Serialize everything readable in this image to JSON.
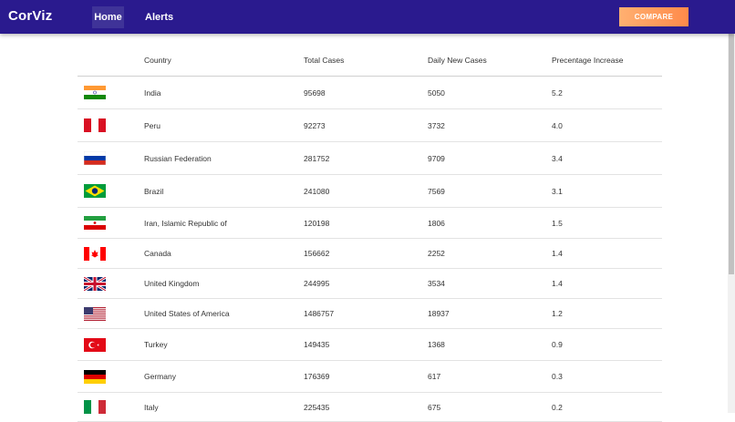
{
  "navbar": {
    "brand": "CorViz",
    "links": [
      "Home",
      "Alerts"
    ],
    "compare_label": "COMPARE"
  },
  "table": {
    "headers": [
      "",
      "Country",
      "Total Cases",
      "Daily New Cases",
      "Precentage Increase"
    ],
    "rows": [
      {
        "flag": "india-flag-icon",
        "country": "India",
        "total": "95698",
        "daily": "5050",
        "pct": "5.2"
      },
      {
        "flag": "peru-flag-icon",
        "country": "Peru",
        "total": "92273",
        "daily": "3732",
        "pct": "4.0"
      },
      {
        "flag": "russia-flag-icon",
        "country": "Russian Federation",
        "total": "281752",
        "daily": "9709",
        "pct": "3.4"
      },
      {
        "flag": "brazil-flag-icon",
        "country": "Brazil",
        "total": "241080",
        "daily": "7569",
        "pct": "3.1"
      },
      {
        "flag": "iran-flag-icon",
        "country": "Iran, Islamic Republic of",
        "total": "120198",
        "daily": "1806",
        "pct": "1.5"
      },
      {
        "flag": "canada-flag-icon",
        "country": "Canada",
        "total": "156662",
        "daily": "2252",
        "pct": "1.4"
      },
      {
        "flag": "uk-flag-icon",
        "country": "United Kingdom",
        "total": "244995",
        "daily": "3534",
        "pct": "1.4"
      },
      {
        "flag": "usa-flag-icon",
        "country": "United States of America",
        "total": "1486757",
        "daily": "18937",
        "pct": "1.2"
      },
      {
        "flag": "turkey-flag-icon",
        "country": "Turkey",
        "total": "149435",
        "daily": "1368",
        "pct": "0.9"
      },
      {
        "flag": "germany-flag-icon",
        "country": "Germany",
        "total": "176369",
        "daily": "617",
        "pct": "0.3"
      },
      {
        "flag": "italy-flag-icon",
        "country": "Italy",
        "total": "225435",
        "daily": "675",
        "pct": "0.2"
      }
    ]
  },
  "colors": {
    "navbar": "#2a1a8e",
    "nav_active": "#3f3398",
    "compare_start": "#ffb071",
    "compare_end": "#ff8a4a"
  }
}
